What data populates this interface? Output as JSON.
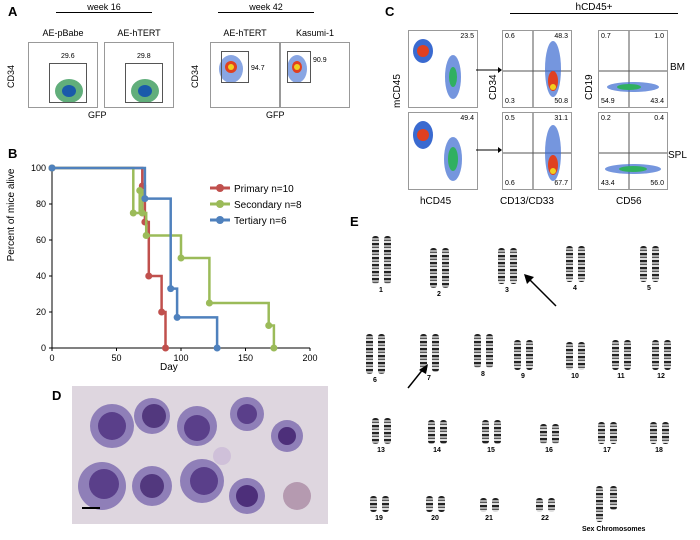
{
  "panels": {
    "A": {
      "label": "A",
      "week16": "week 16",
      "week42": "week 42",
      "plots": [
        {
          "title": "AE-pBabe",
          "value": "29.6"
        },
        {
          "title": "AE-hTERT",
          "value": "29.8"
        },
        {
          "title": "AE-hTERT",
          "value": "94.7"
        },
        {
          "title": "Kasumi-1",
          "value": "90.9"
        }
      ],
      "ylabel": "CD34",
      "xlabel": "GFP"
    },
    "B": {
      "label": "B",
      "ylabel": "Percent of mice alive",
      "xlabel": "Day"
    },
    "C": {
      "label": "C",
      "header": "hCD45+",
      "row_labels": [
        "BM",
        "SPL"
      ],
      "xlabels": [
        "hCD45",
        "CD13/CD33",
        "CD56"
      ],
      "ylabels": [
        "mCD45",
        "CD34",
        "CD19"
      ],
      "rows": [
        {
          "p1": "23.5",
          "q": [
            "0.6",
            "48.3",
            "0.3",
            "50.8"
          ],
          "r": [
            "0.7",
            "1.0",
            "54.9",
            "43.4"
          ]
        },
        {
          "p1": "49.4",
          "q": [
            "0.5",
            "31.1",
            "0.6",
            "67.7"
          ],
          "r": [
            "0.2",
            "0.4",
            "43.4",
            "56.0"
          ]
        }
      ]
    },
    "D": {
      "label": "D"
    },
    "E": {
      "label": "E",
      "numbers": [
        "1",
        "2",
        "3",
        "4",
        "5",
        "6",
        "7",
        "8",
        "9",
        "10",
        "11",
        "12",
        "13",
        "14",
        "15",
        "16",
        "17",
        "18",
        "19",
        "20",
        "21",
        "22"
      ],
      "sex": "Sex Chromosomes"
    }
  },
  "chart_data": {
    "type": "line",
    "xlabel": "Day",
    "ylabel": "Percent of mice alive",
    "xlim": [
      0,
      200
    ],
    "ylim": [
      0,
      100
    ],
    "xticks": [
      "0",
      "50",
      "100",
      "150",
      "200"
    ],
    "yticks": [
      "0",
      "20",
      "40",
      "60",
      "80",
      "100"
    ],
    "legend_position": "top-right",
    "series": [
      {
        "name": "Primary n=10",
        "color": "#c0504d",
        "points": [
          [
            0,
            100
          ],
          [
            70,
            100
          ],
          [
            70,
            90
          ],
          [
            72,
            90
          ],
          [
            72,
            70
          ],
          [
            75,
            70
          ],
          [
            75,
            40
          ],
          [
            80,
            40
          ],
          [
            80,
            40
          ],
          [
            85,
            40
          ],
          [
            85,
            20
          ],
          [
            88,
            20
          ],
          [
            88,
            0
          ]
        ]
      },
      {
        "name": "Secondary n=8",
        "color": "#9bbb59",
        "points": [
          [
            0,
            100
          ],
          [
            63,
            100
          ],
          [
            63,
            75
          ],
          [
            68,
            75
          ],
          [
            68,
            87.5
          ],
          [
            70,
            87.5
          ],
          [
            70,
            75
          ],
          [
            73,
            75
          ],
          [
            73,
            62.5
          ],
          [
            100,
            62.5
          ],
          [
            100,
            50
          ],
          [
            122,
            50
          ],
          [
            122,
            25
          ],
          [
            168,
            25
          ],
          [
            168,
            12.5
          ],
          [
            172,
            12.5
          ],
          [
            172,
            0
          ]
        ]
      },
      {
        "name": "Tertiary n=6",
        "color": "#4f81bd",
        "points": [
          [
            0,
            100
          ],
          [
            72,
            100
          ],
          [
            72,
            83
          ],
          [
            92,
            83
          ],
          [
            92,
            33
          ],
          [
            97,
            33
          ],
          [
            97,
            17
          ],
          [
            128,
            17
          ],
          [
            128,
            0
          ]
        ]
      }
    ]
  }
}
